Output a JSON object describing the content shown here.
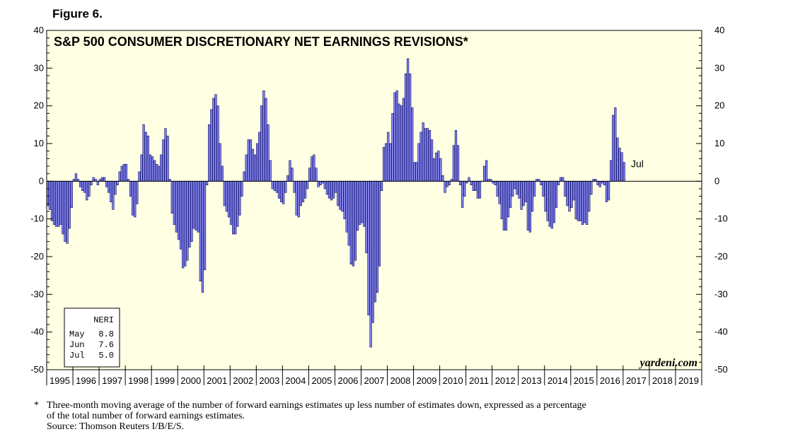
{
  "figure_label": "Figure 6.",
  "footnote": {
    "marker": "*",
    "line1": "Three-month moving average of the number of forward earnings estimates up less number of estimates down, expressed as a percentage",
    "line2": "of the total number of forward earnings estimates.",
    "line3": "Source: Thomson Reuters I/B/E/S."
  },
  "chart_data": {
    "type": "bar",
    "title": "S&P 500 CONSUMER DISCRETIONARY NET EARNINGS REVISIONS*",
    "ylim": [
      -50,
      40
    ],
    "yticks": [
      40,
      30,
      20,
      10,
      0,
      -10,
      -20,
      -30,
      -40,
      -50
    ],
    "years": [
      "1995",
      "1996",
      "1997",
      "1998",
      "1999",
      "2000",
      "2001",
      "2002",
      "2003",
      "2004",
      "2005",
      "2006",
      "2007",
      "2008",
      "2009",
      "2010",
      "2011",
      "2012",
      "2013",
      "2014",
      "2015",
      "2016",
      "2017",
      "2018",
      "2019"
    ],
    "start_year": 1995,
    "frequency": "monthly",
    "values": [
      -6.5,
      -7.5,
      -10.5,
      -11.5,
      -12,
      -12,
      -11.5,
      -14,
      -16,
      -16.5,
      -12.5,
      -7,
      0.5,
      2,
      0.5,
      -1.5,
      -2.5,
      -3,
      -5,
      -4,
      -1,
      1,
      0.5,
      -1,
      0.5,
      1,
      1,
      -1.5,
      -3,
      -5.5,
      -7.5,
      -3.5,
      -1,
      2.5,
      4,
      4.5,
      4.5,
      0.5,
      -4,
      -9,
      -9.5,
      -6,
      2.5,
      7,
      15,
      13,
      12,
      7,
      6.5,
      5.5,
      4.5,
      4,
      7,
      11,
      14,
      12,
      0.5,
      -8.5,
      -11.5,
      -13.5,
      -15.5,
      -18,
      -23,
      -22.5,
      -21,
      -17.5,
      -16,
      -12.5,
      -13,
      -13.5,
      -26.5,
      -29.5,
      -23.5,
      -1,
      15,
      19,
      22,
      23,
      20,
      10,
      4,
      -6.5,
      -8,
      -9.5,
      -11.5,
      -14,
      -14,
      -12,
      -9,
      -4,
      2.5,
      7,
      11,
      11,
      8.5,
      7,
      10,
      13,
      20,
      24,
      22,
      15,
      5.5,
      -2,
      -2.5,
      -3,
      -4.5,
      -5.5,
      -6,
      -3,
      1.5,
      5.5,
      3.5,
      -3,
      -9,
      -9.5,
      -6.5,
      -5.5,
      -4.5,
      -2,
      3.5,
      6.5,
      7,
      3.5,
      -1.5,
      -1,
      -0.5,
      -2,
      -3.5,
      -4.5,
      -5,
      -4.5,
      -3,
      -6.5,
      -7.5,
      -8,
      -10,
      -13.5,
      -17,
      -22,
      -22.5,
      -21,
      -13,
      -11.5,
      -11,
      -12,
      -19,
      -35.5,
      -44,
      -37.5,
      -32,
      -29.5,
      -22.5,
      -2.5,
      9,
      10,
      13,
      10,
      18,
      23.5,
      24,
      20.5,
      20,
      22,
      28.5,
      32.5,
      28.5,
      19.5,
      5,
      5,
      10,
      13,
      15.5,
      14,
      14,
      13.5,
      11,
      6,
      7.5,
      8,
      6,
      1.5,
      -3,
      -1.5,
      -1,
      0.5,
      9.5,
      13.5,
      9.5,
      -1,
      -7,
      -4,
      -0.5,
      1,
      -1,
      -2.5,
      -2.5,
      -4.5,
      -4.5,
      0,
      4,
      5.5,
      0.5,
      0.5,
      -0.5,
      -1,
      -4,
      -6,
      -10,
      -13,
      -13,
      -9.5,
      -7,
      -4,
      -2,
      -3.5,
      -4.5,
      -7.5,
      -6.5,
      -5.5,
      -13,
      -13.5,
      -8,
      -4,
      0.5,
      0.5,
      -1,
      -4,
      -8,
      -10.5,
      -12,
      -12.5,
      -11,
      -7,
      -1,
      1,
      1,
      -4,
      -6.5,
      -8,
      -7,
      -5,
      -10,
      -10.5,
      -10.5,
      -11.5,
      -11,
      -11.5,
      -8,
      -3.5,
      0.5,
      0.5,
      -1,
      -1.5,
      -0.5,
      -1,
      -5.5,
      -5,
      5.5,
      17.5,
      19.5,
      11.5,
      8.8,
      7.6,
      5.0
    ],
    "last_label": "Jul",
    "legend_box": {
      "header": "NERI",
      "rows": [
        {
          "month": "May",
          "value": "8.8"
        },
        {
          "month": "Jun",
          "value": "7.6"
        },
        {
          "month": "Jul",
          "value": "5.0"
        }
      ]
    },
    "source_brand": "yardeni.com",
    "colors": {
      "plot_bg": "#ffffe3",
      "bar_fill": "#8888ee",
      "bar_stroke": "#1a1a7a",
      "axis": "#000000"
    }
  }
}
